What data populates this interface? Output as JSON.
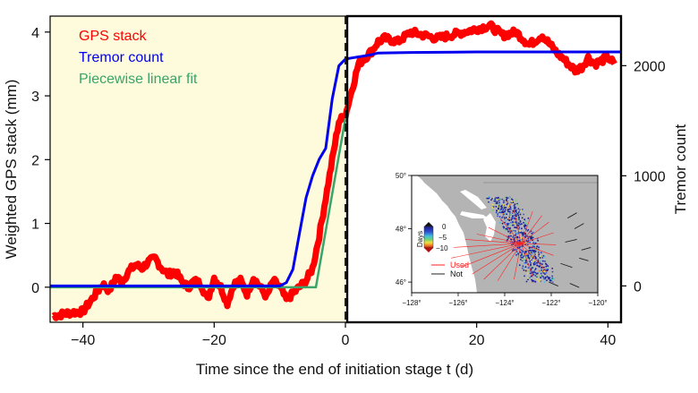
{
  "chart_data": [
    {
      "type": "line",
      "title": "",
      "xlabel": "Time since the end of initiation stage t (d)",
      "ylabel": "Weighted GPS stack (mm)",
      "y2label": "Tremor count",
      "xlim": [
        -45,
        42
      ],
      "ylim": [
        -0.55,
        4.25
      ],
      "y2lim": [
        -330,
        2450
      ],
      "xticks": [
        -40,
        -20,
        0,
        20,
        40
      ],
      "yticks": [
        0,
        1,
        2,
        3,
        4
      ],
      "y2ticks": [
        0,
        1000,
        2000
      ],
      "initiation_shade": {
        "from": -45,
        "to": 0,
        "color": "#fdfbdc"
      },
      "vline_x": 0,
      "legend": {
        "position": "top-left",
        "entries": [
          {
            "label": "GPS stack",
            "color": "#ff0000"
          },
          {
            "label": "Tremor count",
            "color": "#0000ee"
          },
          {
            "label": "Piecewise linear fit",
            "color": "#3aa46a"
          }
        ]
      },
      "series": [
        {
          "name": "GPS stack",
          "color": "#ff0000",
          "axis": "left",
          "x": [
            -44.5,
            -42,
            -40,
            -38,
            -37,
            -36,
            -35,
            -34,
            -33,
            -32,
            -31,
            -30,
            -29,
            -28,
            -27,
            -26,
            -25,
            -24,
            -23,
            -22,
            -21,
            -20,
            -19,
            -18,
            -17,
            -16,
            -15,
            -14,
            -13,
            -12,
            -11,
            -10,
            -9,
            -8,
            -7,
            -6,
            -5,
            -4,
            -3,
            -2,
            -1,
            0,
            1,
            2,
            3,
            4,
            5,
            6,
            8,
            10,
            12,
            14,
            16,
            18,
            20,
            22,
            24,
            26,
            28,
            30,
            32,
            34,
            35,
            36,
            37,
            38,
            39,
            40,
            41
          ],
          "values": [
            -0.45,
            -0.4,
            -0.38,
            -0.1,
            0.05,
            -0.05,
            0.15,
            0.1,
            0.25,
            0.35,
            0.3,
            0.4,
            0.45,
            0.3,
            0.2,
            0.25,
            0.1,
            0.0,
            0.1,
            0.05,
            -0.2,
            0.15,
            0.0,
            -0.25,
            0.05,
            0.1,
            -0.1,
            0.15,
            0.0,
            -0.15,
            0.1,
            0.0,
            -0.2,
            -0.1,
            0.0,
            0.1,
            0.3,
            0.8,
            1.4,
            2.0,
            2.6,
            2.7,
            3.1,
            3.5,
            3.6,
            3.7,
            3.85,
            3.9,
            3.85,
            4.0,
            3.95,
            3.9,
            3.95,
            4.0,
            4.05,
            4.1,
            3.95,
            4.0,
            3.8,
            3.95,
            3.7,
            3.5,
            3.4,
            3.45,
            3.6,
            3.5,
            3.55,
            3.6,
            3.5
          ]
        },
        {
          "name": "Tremor count",
          "color": "#0000ee",
          "axis": "right",
          "x": [
            -45,
            -10,
            -9,
            -8,
            -7,
            -6,
            -5,
            -4,
            -3,
            -2,
            -1,
            0,
            1,
            2,
            3,
            4,
            5,
            10,
            20,
            30,
            42
          ],
          "values": [
            0,
            0,
            30,
            150,
            480,
            800,
            1000,
            1150,
            1250,
            1700,
            2000,
            2060,
            2070,
            2080,
            2090,
            2100,
            2115,
            2120,
            2125,
            2125,
            2125
          ]
        },
        {
          "name": "Piecewise linear fit",
          "color": "#3aa46a",
          "axis": "left",
          "x": [
            -45,
            -4.5,
            0
          ],
          "values": [
            0,
            0,
            2.65
          ]
        }
      ]
    },
    {
      "type": "scatter",
      "title": "",
      "xlim": [
        -128,
        -120
      ],
      "ylim": [
        45.6,
        50
      ],
      "xticks": [
        "−128°",
        "−126°",
        "−124°",
        "−122°",
        "−120°"
      ],
      "xtick_values": [
        -128,
        -126,
        -124,
        -122,
        -120
      ],
      "yticks": [
        "46°",
        "48°",
        "50°"
      ],
      "ytick_values": [
        46,
        48,
        50
      ],
      "colorbar": {
        "label": "Days",
        "ticks": [
          "0",
          "−5",
          "−10"
        ],
        "tick_values": [
          0,
          -5,
          -10
        ],
        "range": [
          -10,
          0
        ]
      },
      "legend": {
        "position": "bottom-left",
        "entries": [
          {
            "label": "Used",
            "color": "#ff2020"
          },
          {
            "label": "Not",
            "color": "#222222"
          }
        ]
      },
      "hub": [
        -123.3,
        47.45
      ],
      "used_stations": [
        [
          -126.3,
          46.9
        ],
        [
          -125.9,
          46.55
        ],
        [
          -125.4,
          46.3
        ],
        [
          -124.9,
          46.1
        ],
        [
          -124.3,
          46.05
        ],
        [
          -123.6,
          46.1
        ],
        [
          -122.8,
          46.2
        ],
        [
          -122.2,
          46.4
        ],
        [
          -121.9,
          47.0
        ],
        [
          -121.8,
          47.4
        ],
        [
          -121.9,
          47.85
        ],
        [
          -122.1,
          48.25
        ],
        [
          -122.4,
          48.5
        ],
        [
          -122.8,
          48.65
        ],
        [
          -123.6,
          48.7
        ],
        [
          -124.2,
          48.4
        ],
        [
          -124.7,
          48.05
        ],
        [
          -125.2,
          47.8
        ],
        [
          -125.7,
          47.6
        ],
        [
          -126.2,
          47.3
        ]
      ],
      "not_stations": [
        [
          -121.4,
          47.5,
          -120.9,
          47.6
        ],
        [
          -121.0,
          48.0,
          -120.6,
          48.2
        ],
        [
          -121.6,
          46.7,
          -121.1,
          46.55
        ],
        [
          -120.8,
          46.9,
          -120.4,
          46.8
        ],
        [
          -121.3,
          48.4,
          -120.9,
          48.6
        ],
        [
          -120.7,
          47.2,
          -120.3,
          47.3
        ],
        [
          -122.1,
          46.0,
          -121.7,
          45.85
        ],
        [
          -121.2,
          45.95,
          -120.8,
          45.8
        ]
      ]
    }
  ]
}
